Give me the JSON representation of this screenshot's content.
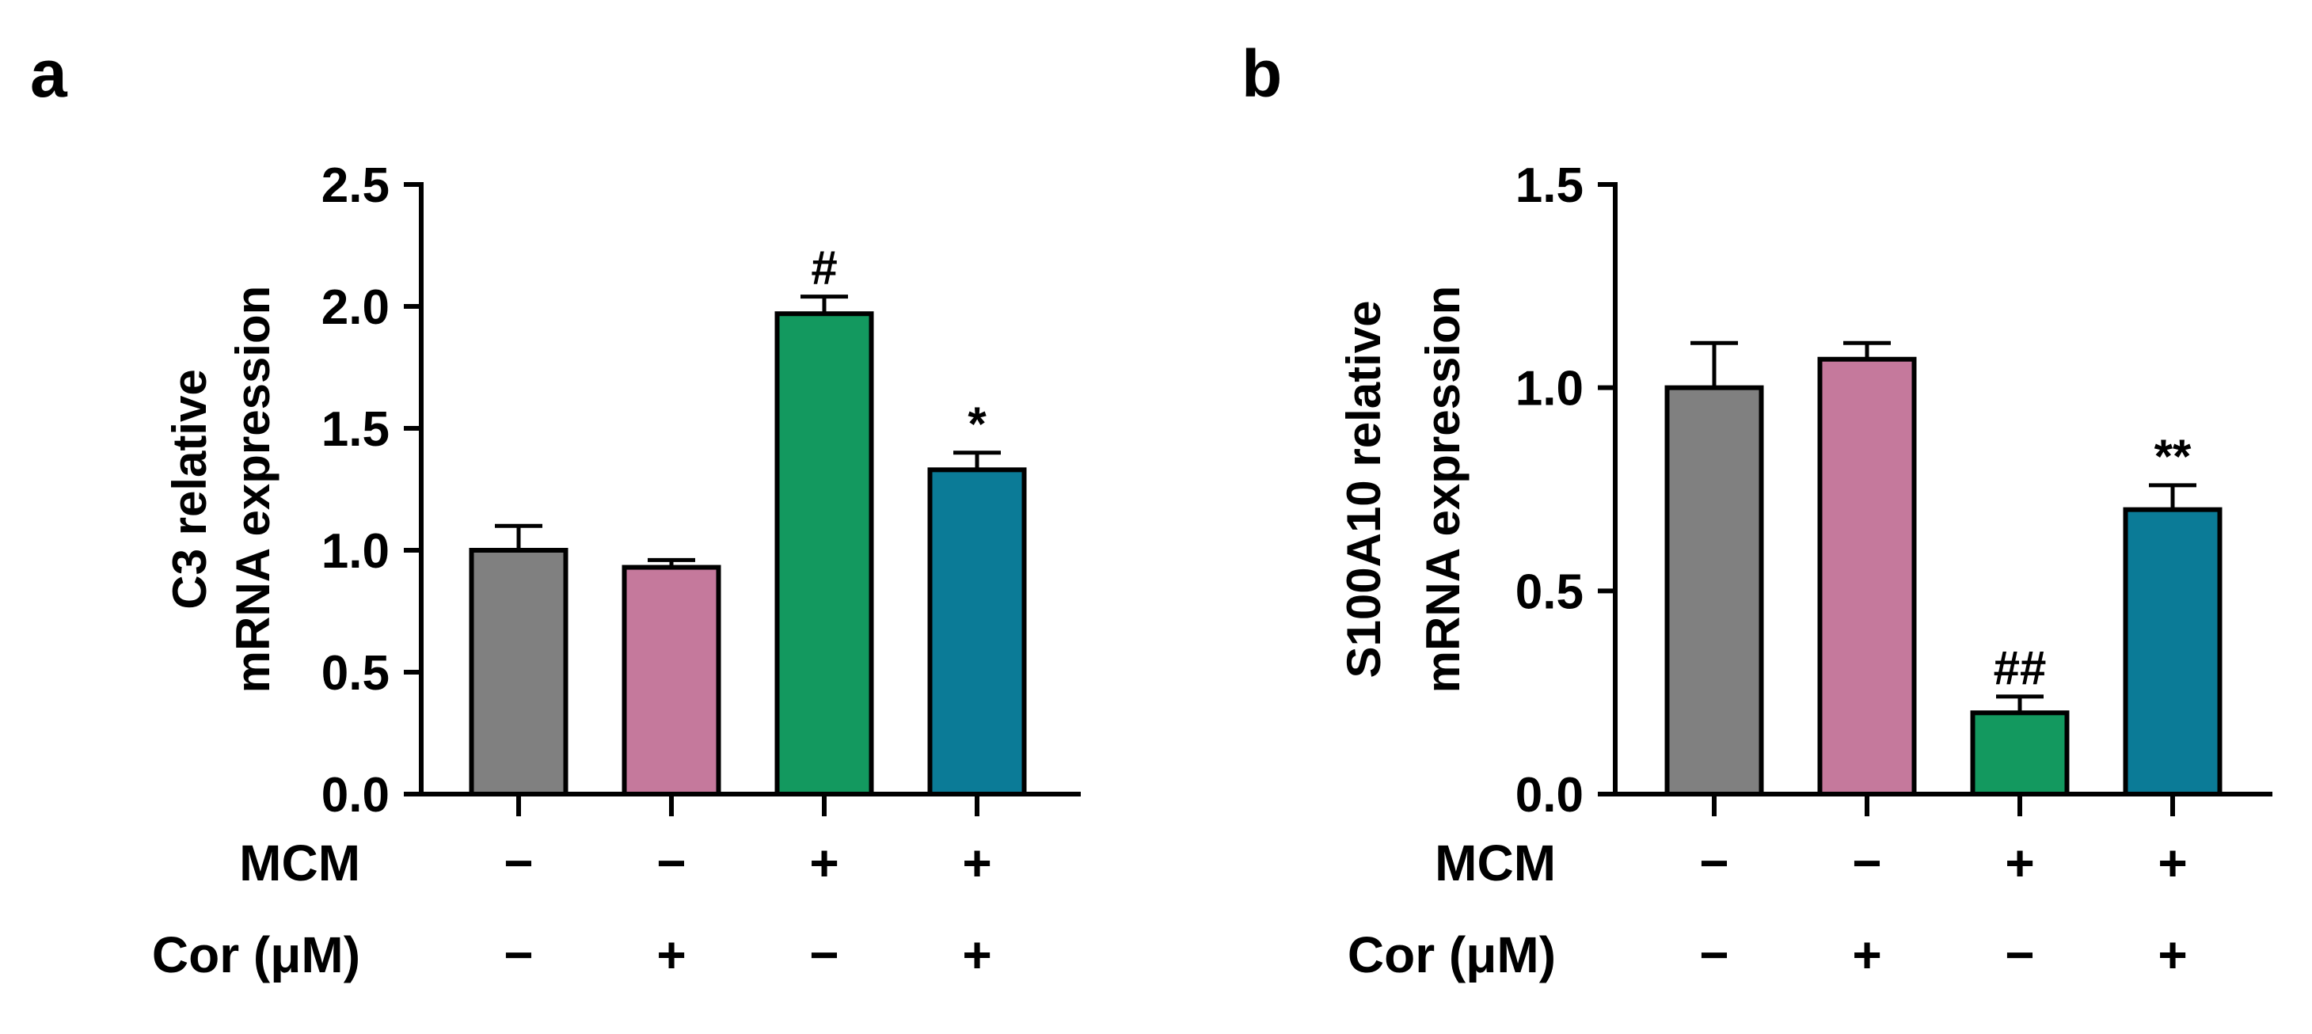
{
  "chart_data": [
    {
      "panel": "a",
      "type": "bar",
      "ylabel": [
        "C3 relative",
        "mRNA expression"
      ],
      "ylim": [
        0,
        2.5
      ],
      "yticks": [
        0,
        0.5,
        1.0,
        1.5,
        2.0,
        2.5
      ],
      "ytick_labels": [
        "0.0",
        "0.5",
        "1.0",
        "1.5",
        "2.0",
        "2.5"
      ],
      "bars": [
        {
          "value": 1.0,
          "error": 0.1,
          "color": "#808080",
          "annotation": ""
        },
        {
          "value": 0.93,
          "error": 0.03,
          "color": "#c5799c",
          "annotation": ""
        },
        {
          "value": 1.97,
          "error": 0.07,
          "color": "#13995f",
          "annotation": "#"
        },
        {
          "value": 1.33,
          "error": 0.07,
          "color": "#0b7b97",
          "annotation": "*"
        }
      ],
      "conditions": [
        {
          "label": "MCM",
          "signs": [
            "−",
            "−",
            "+",
            "+"
          ]
        },
        {
          "label": "Cor (μM)",
          "signs": [
            "−",
            "+",
            "−",
            "+"
          ]
        }
      ]
    },
    {
      "panel": "b",
      "type": "bar",
      "ylabel": [
        "S100A10 relative",
        "mRNA expression"
      ],
      "ylim": [
        0,
        1.5
      ],
      "yticks": [
        0,
        0.5,
        1.0,
        1.5
      ],
      "ytick_labels": [
        "0.0",
        "0.5",
        "1.0",
        "1.5"
      ],
      "bars": [
        {
          "value": 1.0,
          "error": 0.11,
          "color": "#808080",
          "annotation": ""
        },
        {
          "value": 1.07,
          "error": 0.04,
          "color": "#c5799c",
          "annotation": ""
        },
        {
          "value": 0.2,
          "error": 0.04,
          "color": "#13995f",
          "annotation": "##"
        },
        {
          "value": 0.7,
          "error": 0.06,
          "color": "#0b7b97",
          "annotation": "**"
        }
      ],
      "conditions": [
        {
          "label": "MCM",
          "signs": [
            "−",
            "−",
            "+",
            "+"
          ]
        },
        {
          "label": "Cor (μM)",
          "signs": [
            "−",
            "+",
            "−",
            "+"
          ]
        }
      ]
    }
  ]
}
